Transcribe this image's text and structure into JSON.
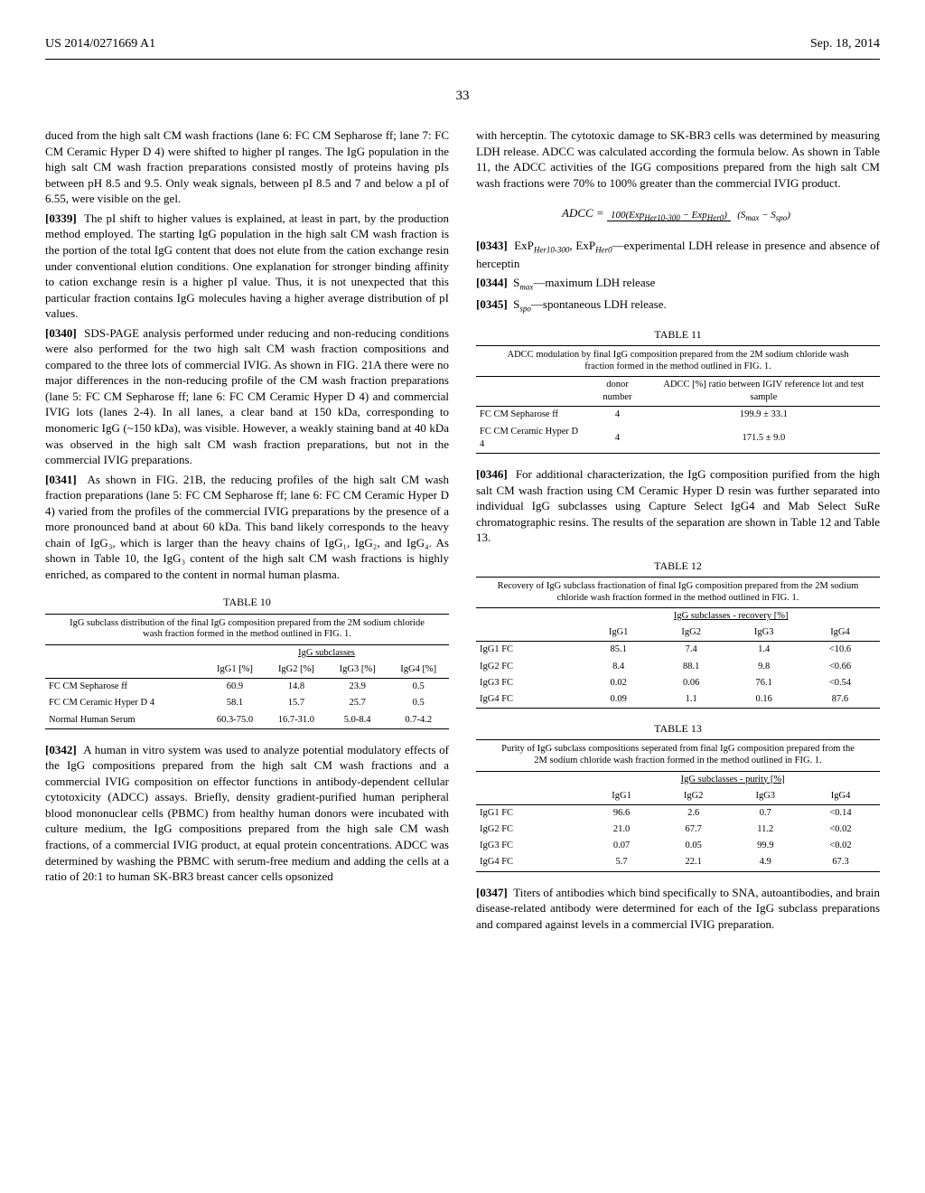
{
  "header": {
    "left": "US 2014/0271669 A1",
    "right": "Sep. 18, 2014"
  },
  "pageNum": "33",
  "left": {
    "p0": "duced from the high salt CM wash fractions (lane 6: FC CM Sepharose ff; lane 7: FC CM Ceramic Hyper D 4) were shifted to higher pI ranges. The IgG population in the high salt CM wash fraction preparations consisted mostly of proteins having pIs between pH 8.5 and 9.5. Only weak signals, between pI 8.5 and 7 and below a pI of 6.55, were visible on the gel.",
    "p0339n": "[0339]",
    "p0339": "The pI shift to higher values is explained, at least in part, by the production method employed. The starting IgG population in the high salt CM wash fraction is the portion of the total IgG content that does not elute from the cation exchange resin under conventional elution conditions. One explanation for stronger binding affinity to cation exchange resin is a higher pI value. Thus, it is not unexpected that this particular fraction contains IgG molecules having a higher average distribution of pI values.",
    "p0340n": "[0340]",
    "p0340": "SDS-PAGE analysis performed under reducing and non-reducing conditions were also performed for the two high salt CM wash fraction compositions and compared to the three lots of commercial IVIG. As shown in FIG. 21A there were no major differences in the non-reducing profile of the CM wash fraction preparations (lane 5: FC CM Sepharose ff; lane 6: FC CM Ceramic Hyper D 4) and commercial IVIG lots (lanes 2-4). In all lanes, a clear band at 150 kDa, corresponding to monomeric IgG (~150 kDa), was visible. However, a weakly staining band at 40 kDa was observed in the high salt CM wash fraction preparations, but not in the commercial IVIG preparations.",
    "p0341n": "[0341]",
    "p0341": "As shown in FIG. 21B, the reducing profiles of the high salt CM wash fraction preparations (lane 5: FC CM Sepharose ff; lane 6: FC CM Ceramic Hyper D 4) varied from the profiles of the commercial IVIG preparations by the presence of a more pronounced band at about 60 kDa. This band likely corresponds to the heavy chain of IgG₃, which is larger than the heavy chains of IgG₁, IgG₂, and IgG₄. As shown in Table 10, the IgG₃ content of the high salt CM wash fractions is highly enriched, as compared to the content in normal human plasma.",
    "t10": {
      "title": "TABLE 10",
      "caption": "IgG subclass distribution of the final IgG composition prepared from the 2M sodium chloride wash fraction formed in the method outlined in FIG. 1.",
      "grp": "IgG subclasses",
      "h": [
        "",
        "IgG1 [%]",
        "IgG2 [%]",
        "IgG3 [%]",
        "IgG4 [%]"
      ],
      "rows": [
        [
          "FC CM Sepharose ff",
          "60.9",
          "14.8",
          "23.9",
          "0.5"
        ],
        [
          "FC CM Ceramic Hyper D 4",
          "58.1",
          "15.7",
          "25.7",
          "0.5"
        ],
        [
          "Normal Human Serum",
          "60.3-75.0",
          "16.7-31.0",
          "5.0-8.4",
          "0.7-4.2"
        ]
      ]
    },
    "p0342n": "[0342]",
    "p0342": "A human in vitro system was used to analyze potential modulatory effects of the IgG compositions prepared from the high salt CM wash fractions and a commercial IVIG composition on effector functions in antibody-dependent cellular cytotoxicity (ADCC) assays. Briefly, density gradient-purified human peripheral blood mononuclear cells (PBMC) from healthy human donors were incubated with culture medium, the IgG compositions prepared from the high sale CM wash fractions, of a commercial IVIG product, at equal protein concentrations. ADCC was determined by washing the PBMC with serum-free medium and adding the cells at a ratio of 20:1 to human SK-BR3 breast cancer cells opsonized"
  },
  "right": {
    "p0c": "with herceptin. The cytotoxic damage to SK-BR3 cells was determined by measuring LDH release. ADCC was calculated according the formula below. As shown in Table 11, the ADCC activities of the IGG compositions prepared from the high salt CM wash fractions were 70% to 100% greater than the commercial IVIG product.",
    "formulaLHS": "ADCC = ",
    "formulaNum": "100(Exp",
    "formulaSub1": "Her10-300",
    "formulaMid": " − Exp",
    "formulaSub2": "Her0",
    "formulaEnd": ")",
    "formulaDen1": "(S",
    "formulaDenSub1": "max",
    "formulaDen2": " − S",
    "formulaDenSub2": "spo",
    "formulaDen3": ")",
    "p0343n": "[0343]",
    "p0343a": "ExP",
    "p0343b": ",   ExP",
    "p0343c": "—experimental   LDH release in presence and absence of herceptin",
    "p0344n": "[0344]",
    "p0344a": "S",
    "p0344b": "—maximum LDH release",
    "p0345n": "[0345]",
    "p0345a": "S",
    "p0345b": "—spontaneous LDH release.",
    "t11": {
      "title": "TABLE 11",
      "caption": "ADCC modulation by final IgG composition prepared from the 2M sodium chloride wash fraction formed in the method outlined in FIG. 1.",
      "h": [
        "",
        "donor number",
        "ADCC [%] ratio between IGIV reference lot and test sample"
      ],
      "rows": [
        [
          "FC CM Sepharose ff",
          "4",
          "199.9 ± 33.1"
        ],
        [
          "FC CM Ceramic Hyper D 4",
          "4",
          "171.5 ± 9.0"
        ]
      ]
    },
    "p0346n": "[0346]",
    "p0346": "For additional characterization, the IgG composition purified from the high salt CM wash fraction using CM Ceramic Hyper D resin was further separated into individual IgG subclasses using Capture Select IgG4 and Mab Select SuRe chromatographic resins. The results of the separation are shown in Table 12 and Table 13.",
    "t12": {
      "title": "TABLE 12",
      "caption": "Recovery of IgG subclass fractionation of final IgG composition prepared from the 2M sodium chloride wash fraction formed in the method outlined in FIG. 1.",
      "grp": "IgG subclasses - recovery [%]",
      "h": [
        "",
        "IgG1",
        "IgG2",
        "IgG3",
        "IgG4"
      ],
      "rows": [
        [
          "IgG1 FC",
          "85.1",
          "7.4",
          "1.4",
          "<10.6"
        ],
        [
          "IgG2 FC",
          "8.4",
          "88.1",
          "9.8",
          "<0.66"
        ],
        [
          "IgG3 FC",
          "0.02",
          "0.06",
          "76.1",
          "<0.54"
        ],
        [
          "IgG4 FC",
          "0.09",
          "1.1",
          "0.16",
          "87.6"
        ]
      ]
    },
    "t13": {
      "title": "TABLE 13",
      "caption": "Purity of IgG subclass compositions seperated from final IgG composition prepared from the 2M sodium chloride wash fraction formed in the method outlined in FIG. 1.",
      "grp": "IgG subclasses - purity [%]",
      "h": [
        "",
        "IgG1",
        "IgG2",
        "IgG3",
        "IgG4"
      ],
      "rows": [
        [
          "IgG1 FC",
          "96.6",
          "2.6",
          "0.7",
          "<0.14"
        ],
        [
          "IgG2 FC",
          "21.0",
          "67.7",
          "11.2",
          "<0.02"
        ],
        [
          "IgG3 FC",
          "0.07",
          "0.05",
          "99.9",
          "<0.02"
        ],
        [
          "IgG4 FC",
          "5.7",
          "22.1",
          "4.9",
          "67.3"
        ]
      ]
    },
    "p0347n": "[0347]",
    "p0347": "Titers of antibodies which bind specifically to SNA, autoantibodies, and brain disease-related antibody were determined for each of the IgG subclass preparations and compared against levels in a commercial IVIG preparation."
  }
}
